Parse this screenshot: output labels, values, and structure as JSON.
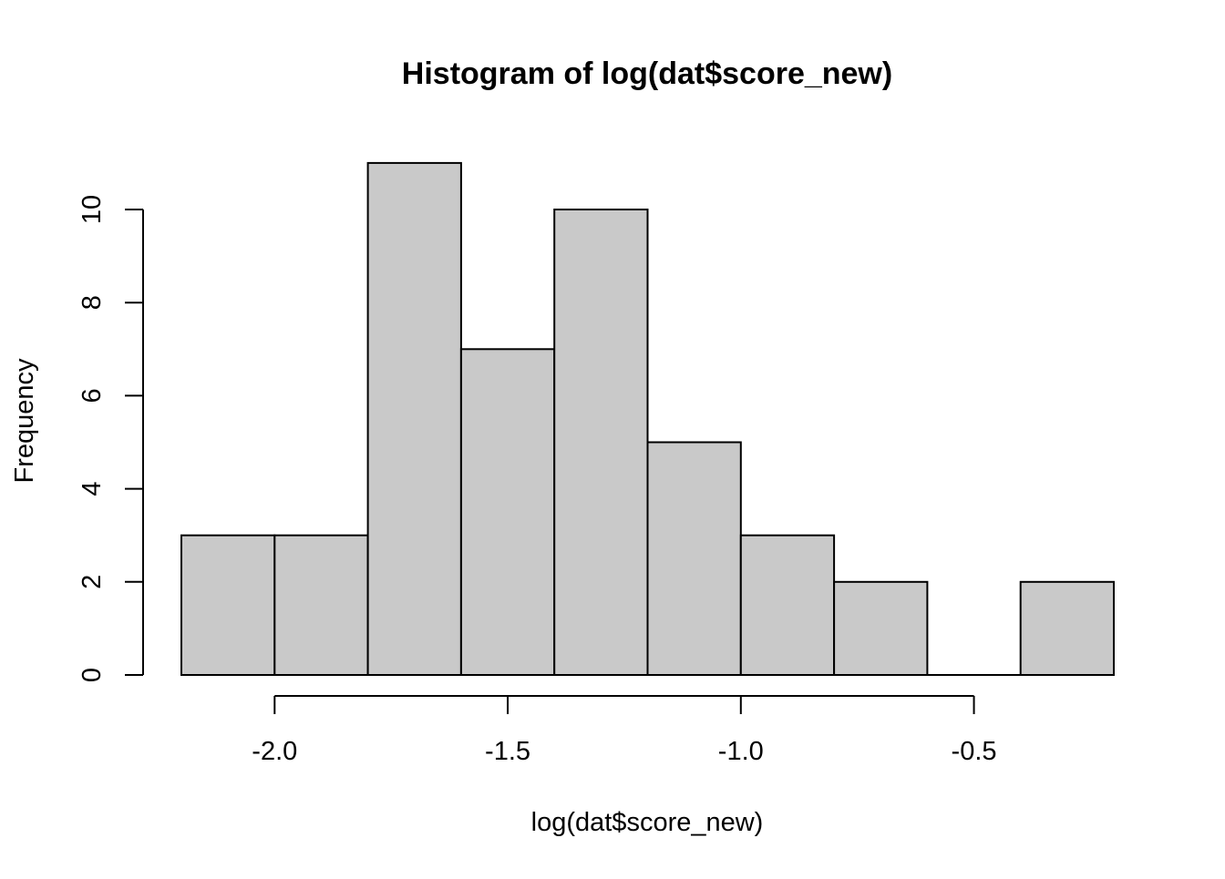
{
  "chart_data": {
    "type": "bar",
    "subtype": "histogram",
    "title": "Histogram of log(dat$score_new)",
    "xlabel": "log(dat$score_new)",
    "ylabel": "Frequency",
    "bins": [
      {
        "start": -2.2,
        "end": -2.0,
        "count": 3
      },
      {
        "start": -2.0,
        "end": -1.8,
        "count": 3
      },
      {
        "start": -1.8,
        "end": -1.6,
        "count": 11
      },
      {
        "start": -1.6,
        "end": -1.4,
        "count": 7
      },
      {
        "start": -1.4,
        "end": -1.2,
        "count": 10
      },
      {
        "start": -1.2,
        "end": -1.0,
        "count": 5
      },
      {
        "start": -1.0,
        "end": -0.8,
        "count": 3
      },
      {
        "start": -0.8,
        "end": -0.6,
        "count": 2
      },
      {
        "start": -0.6,
        "end": -0.4,
        "count": 0
      },
      {
        "start": -0.4,
        "end": -0.2,
        "count": 2
      }
    ],
    "xlim": [
      -2.2,
      -0.2
    ],
    "ylim": [
      0,
      11
    ],
    "x_ticks": [
      -2.0,
      -1.5,
      -1.0,
      -0.5
    ],
    "x_tick_labels": [
      "-2.0",
      "-1.5",
      "-1.0",
      "-0.5"
    ],
    "y_ticks": [
      0,
      2,
      4,
      6,
      8,
      10
    ],
    "y_tick_labels": [
      "0",
      "2",
      "4",
      "6",
      "8",
      "10"
    ],
    "bar_fill": "#c9c9c9",
    "bar_stroke": "#000000",
    "grid": false,
    "legend": "none"
  }
}
